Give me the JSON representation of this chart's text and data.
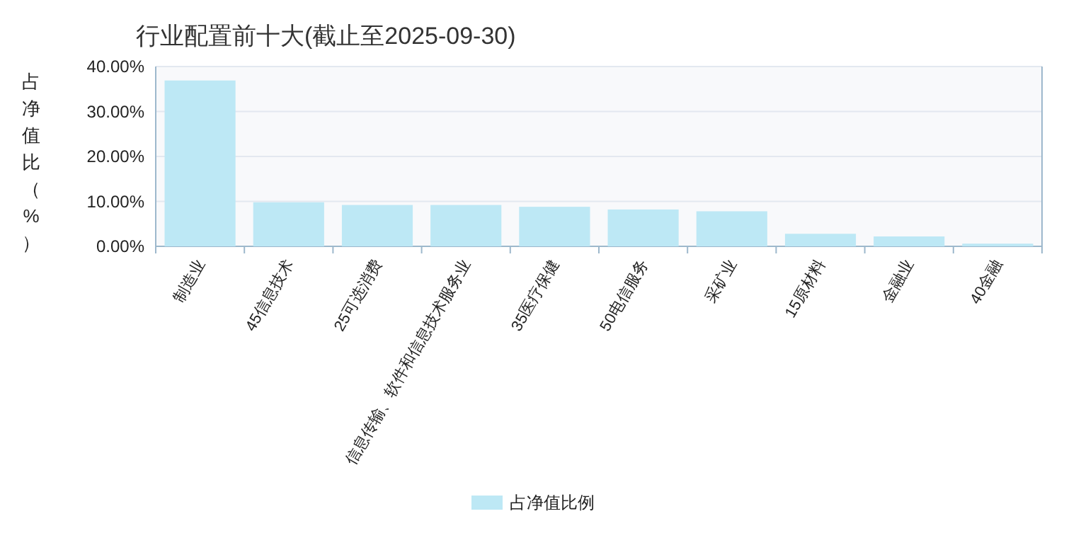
{
  "chart_data": {
    "type": "bar",
    "title": "行业配置前十大(截止至2025-09-30)",
    "ylabel": "占净值比（%）",
    "categories": [
      "制造业",
      "45信息技术",
      "25可选消费",
      "信息传输、软件和信息技术服务业",
      "35医疗保健",
      "50电信服务",
      "采矿业",
      "15原材料",
      "金融业",
      "40金融"
    ],
    "series": [
      {
        "name": "占净值比例",
        "color": "#bde8f5",
        "values": [
          36.9,
          9.8,
          9.2,
          9.2,
          8.8,
          8.2,
          7.8,
          2.8,
          2.2,
          0.6
        ]
      }
    ],
    "ylim": [
      0,
      40
    ],
    "yticks": [
      {
        "value": 0,
        "label": "0.00%"
      },
      {
        "value": 10,
        "label": "10.00%"
      },
      {
        "value": 20,
        "label": "20.00%"
      },
      {
        "value": 30,
        "label": "30.00%"
      },
      {
        "value": 40,
        "label": "40.00%"
      }
    ],
    "grid": "y",
    "legend": "bottom"
  }
}
